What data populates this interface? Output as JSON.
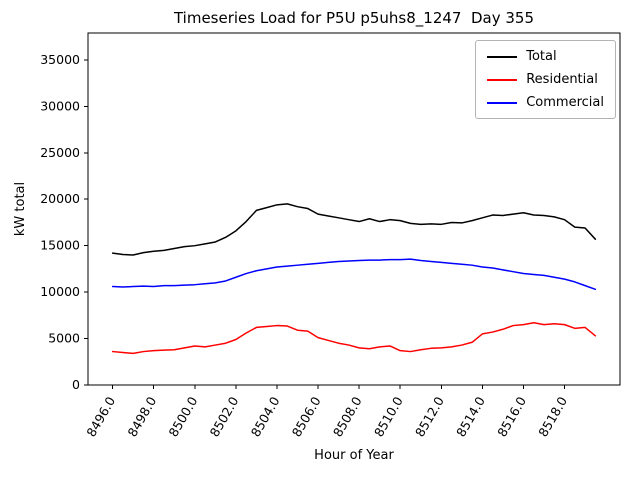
{
  "chart_data": {
    "type": "line",
    "title": "Timeseries Load for P5U p5uhs8_1247  Day 355",
    "xlabel": "Hour of Year",
    "ylabel": "kW total",
    "grid": false,
    "legend_position": "upper right",
    "xlim": [
      8494.8,
      8520.7
    ],
    "ylim": [
      0,
      37900
    ],
    "xticks": [
      8496,
      8498,
      8500,
      8502,
      8504,
      8506,
      8508,
      8510,
      8512,
      8514,
      8516,
      8518
    ],
    "xtick_labels": [
      "8496.0",
      "8498.0",
      "8500.0",
      "8502.0",
      "8504.0",
      "8506.0",
      "8508.0",
      "8510.0",
      "8512.0",
      "8514.0",
      "8516.0",
      "8518.0"
    ],
    "yticks": [
      0,
      5000,
      10000,
      15000,
      20000,
      25000,
      30000,
      35000
    ],
    "ytick_labels": [
      "0",
      "5000",
      "10000",
      "15000",
      "20000",
      "25000",
      "30000",
      "35000"
    ],
    "x": [
      8496.0,
      8496.5,
      8497.0,
      8497.5,
      8498.0,
      8498.5,
      8499.0,
      8499.5,
      8500.0,
      8500.5,
      8501.0,
      8501.5,
      8502.0,
      8502.5,
      8503.0,
      8503.5,
      8504.0,
      8504.5,
      8505.0,
      8505.5,
      8506.0,
      8506.5,
      8507.0,
      8507.5,
      8508.0,
      8508.5,
      8509.0,
      8509.5,
      8510.0,
      8510.5,
      8511.0,
      8511.5,
      8512.0,
      8512.5,
      8513.0,
      8513.5,
      8514.0,
      8514.5,
      8515.0,
      8515.5,
      8516.0,
      8516.5,
      8517.0,
      8517.5,
      8518.0,
      8518.5,
      8519.0,
      8519.5
    ],
    "series": [
      {
        "name": "Total",
        "color": "#000000",
        "values": [
          14200,
          14050,
          14000,
          14250,
          14400,
          14500,
          14700,
          14900,
          15000,
          15200,
          15400,
          15900,
          16600,
          17600,
          18800,
          19100,
          19400,
          19500,
          19200,
          19000,
          18400,
          18200,
          18000,
          17800,
          17600,
          17900,
          17600,
          17800,
          17700,
          17400,
          17300,
          17350,
          17300,
          17500,
          17450,
          17700,
          18000,
          18300,
          18250,
          18400,
          18550,
          18300,
          18250,
          18100,
          17800,
          17000,
          16900,
          15700
        ]
      },
      {
        "name": "Residential",
        "color": "#ff0000",
        "values": [
          3600,
          3500,
          3400,
          3600,
          3700,
          3750,
          3800,
          4000,
          4200,
          4100,
          4300,
          4500,
          4900,
          5600,
          6200,
          6300,
          6400,
          6350,
          5900,
          5800,
          5100,
          4800,
          4500,
          4300,
          4000,
          3900,
          4100,
          4200,
          3700,
          3600,
          3800,
          3950,
          4000,
          4100,
          4300,
          4600,
          5500,
          5700,
          6000,
          6400,
          6500,
          6700,
          6500,
          6600,
          6500,
          6100,
          6200,
          5300
        ]
      },
      {
        "name": "Commercial",
        "color": "#0000ff",
        "values": [
          10600,
          10550,
          10600,
          10650,
          10600,
          10700,
          10700,
          10750,
          10800,
          10900,
          11000,
          11200,
          11600,
          12000,
          12300,
          12500,
          12700,
          12800,
          12900,
          13000,
          13100,
          13200,
          13300,
          13350,
          13400,
          13450,
          13450,
          13500,
          13500,
          13550,
          13400,
          13300,
          13200,
          13100,
          13000,
          12900,
          12700,
          12600,
          12400,
          12200,
          12000,
          11900,
          11800,
          11600,
          11400,
          11100,
          10700,
          10300
        ]
      }
    ]
  }
}
